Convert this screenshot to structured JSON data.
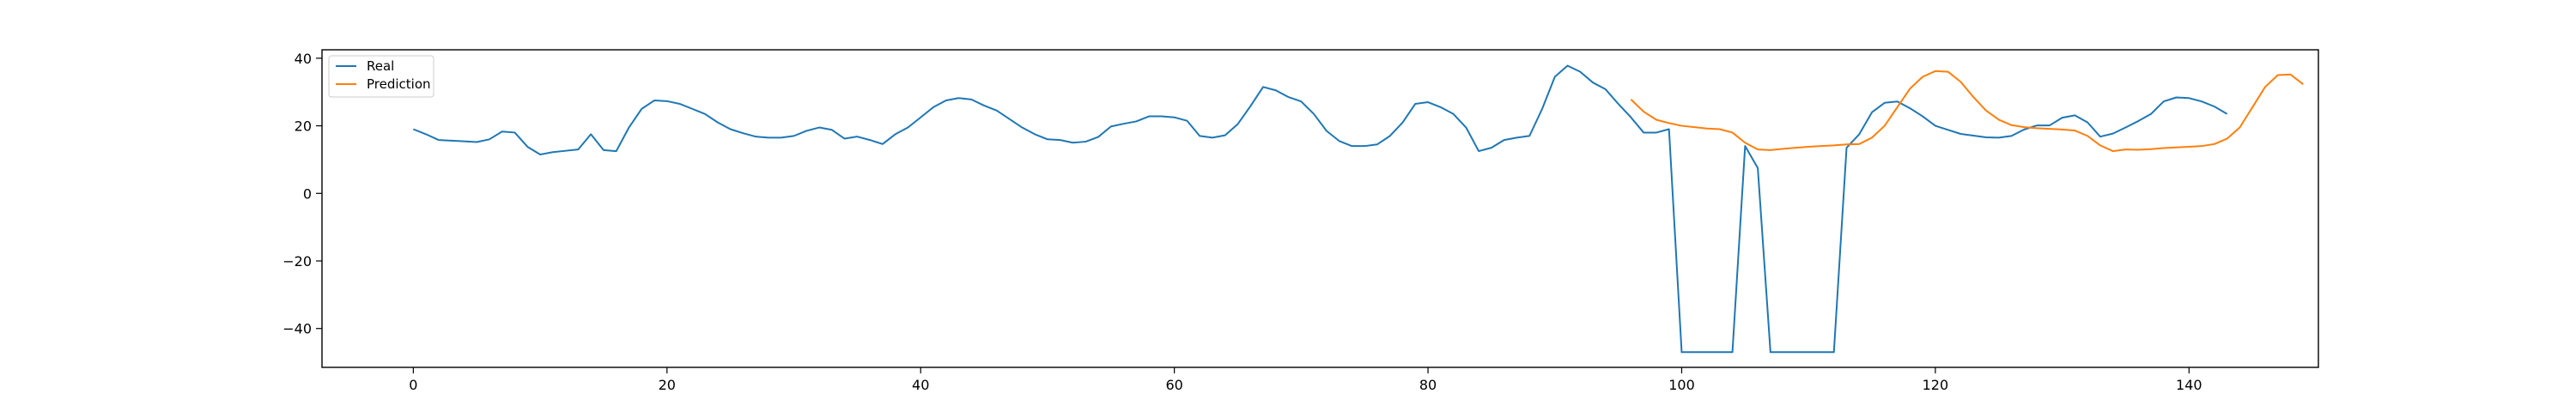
{
  "chart_data": {
    "type": "line",
    "title": "",
    "xlabel": "",
    "ylabel": "",
    "xlim": [
      -7.2,
      150.2
    ],
    "ylim": [
      -51.5,
      42.5
    ],
    "xticks": [
      0,
      20,
      40,
      60,
      80,
      100,
      120,
      140
    ],
    "yticks": [
      -40,
      -20,
      0,
      20,
      40
    ],
    "xtick_labels": [
      "0",
      "20",
      "40",
      "60",
      "80",
      "100",
      "120",
      "140"
    ],
    "ytick_labels": [
      "−40",
      "−20",
      "0",
      "20",
      "40"
    ],
    "grid": false,
    "legend_position": "top-left",
    "series": [
      {
        "name": "Real",
        "color": "#1f77b4",
        "x_start": 0,
        "values": [
          19.0,
          17.5,
          15.8,
          15.6,
          15.4,
          15.2,
          16.0,
          18.3,
          18.0,
          13.8,
          11.5,
          12.2,
          12.6,
          13.0,
          17.5,
          12.8,
          12.5,
          19.5,
          25.0,
          27.5,
          27.3,
          26.5,
          25.0,
          23.5,
          21.0,
          19.0,
          17.8,
          16.8,
          16.5,
          16.5,
          17.0,
          18.5,
          19.5,
          18.8,
          16.2,
          16.8,
          15.8,
          14.6,
          17.5,
          19.5,
          22.5,
          25.5,
          27.5,
          28.2,
          27.8,
          26.0,
          24.5,
          22.0,
          19.5,
          17.5,
          16.0,
          15.8,
          15.0,
          15.3,
          16.7,
          19.8,
          20.6,
          21.3,
          22.8,
          22.8,
          22.5,
          21.5,
          17.0,
          16.5,
          17.2,
          20.5,
          25.8,
          31.5,
          30.5,
          28.5,
          27.2,
          23.5,
          18.5,
          15.5,
          14.0,
          14.0,
          14.5,
          17.0,
          21.0,
          26.5,
          27.0,
          25.5,
          23.5,
          19.5,
          12.5,
          13.5,
          15.8,
          16.5,
          17.0,
          25.0,
          34.5,
          37.8,
          36.0,
          32.8,
          30.8,
          26.5,
          22.5,
          18.0,
          18.0,
          19.0,
          -47.0,
          -47.0,
          -47.0,
          -47.0,
          -47.0,
          14.0,
          7.5,
          -47.0,
          -47.0,
          -47.0,
          -47.0,
          -47.0,
          -47.0,
          13.5,
          17.5,
          24.0,
          26.8,
          27.2,
          25.2,
          22.8,
          20.0,
          18.8,
          17.6,
          17.1,
          16.6,
          16.5,
          17.0,
          18.9,
          20.1,
          20.1,
          22.4,
          23.1,
          21.0,
          16.8,
          17.7,
          19.5,
          21.4,
          23.5,
          27.2,
          28.4,
          28.2,
          27.2,
          25.7,
          23.5
        ]
      },
      {
        "name": "Prediction",
        "color": "#ff7f0e",
        "x_start": 96,
        "values": [
          27.8,
          24.2,
          21.8,
          20.8,
          20.0,
          19.6,
          19.2,
          19.0,
          18.0,
          15.0,
          13.0,
          12.8,
          13.2,
          13.5,
          13.8,
          14.0,
          14.2,
          14.5,
          14.6,
          16.5,
          20.0,
          25.5,
          31.0,
          34.5,
          36.2,
          36.0,
          33.0,
          28.5,
          24.5,
          21.8,
          20.2,
          19.6,
          19.3,
          19.1,
          18.9,
          18.6,
          17.0,
          14.2,
          12.5,
          13.0,
          12.9,
          13.1,
          13.4,
          13.6,
          13.8,
          14.0,
          14.6,
          16.2,
          19.5,
          25.5,
          31.5,
          35.0,
          35.2,
          32.3
        ]
      }
    ]
  }
}
